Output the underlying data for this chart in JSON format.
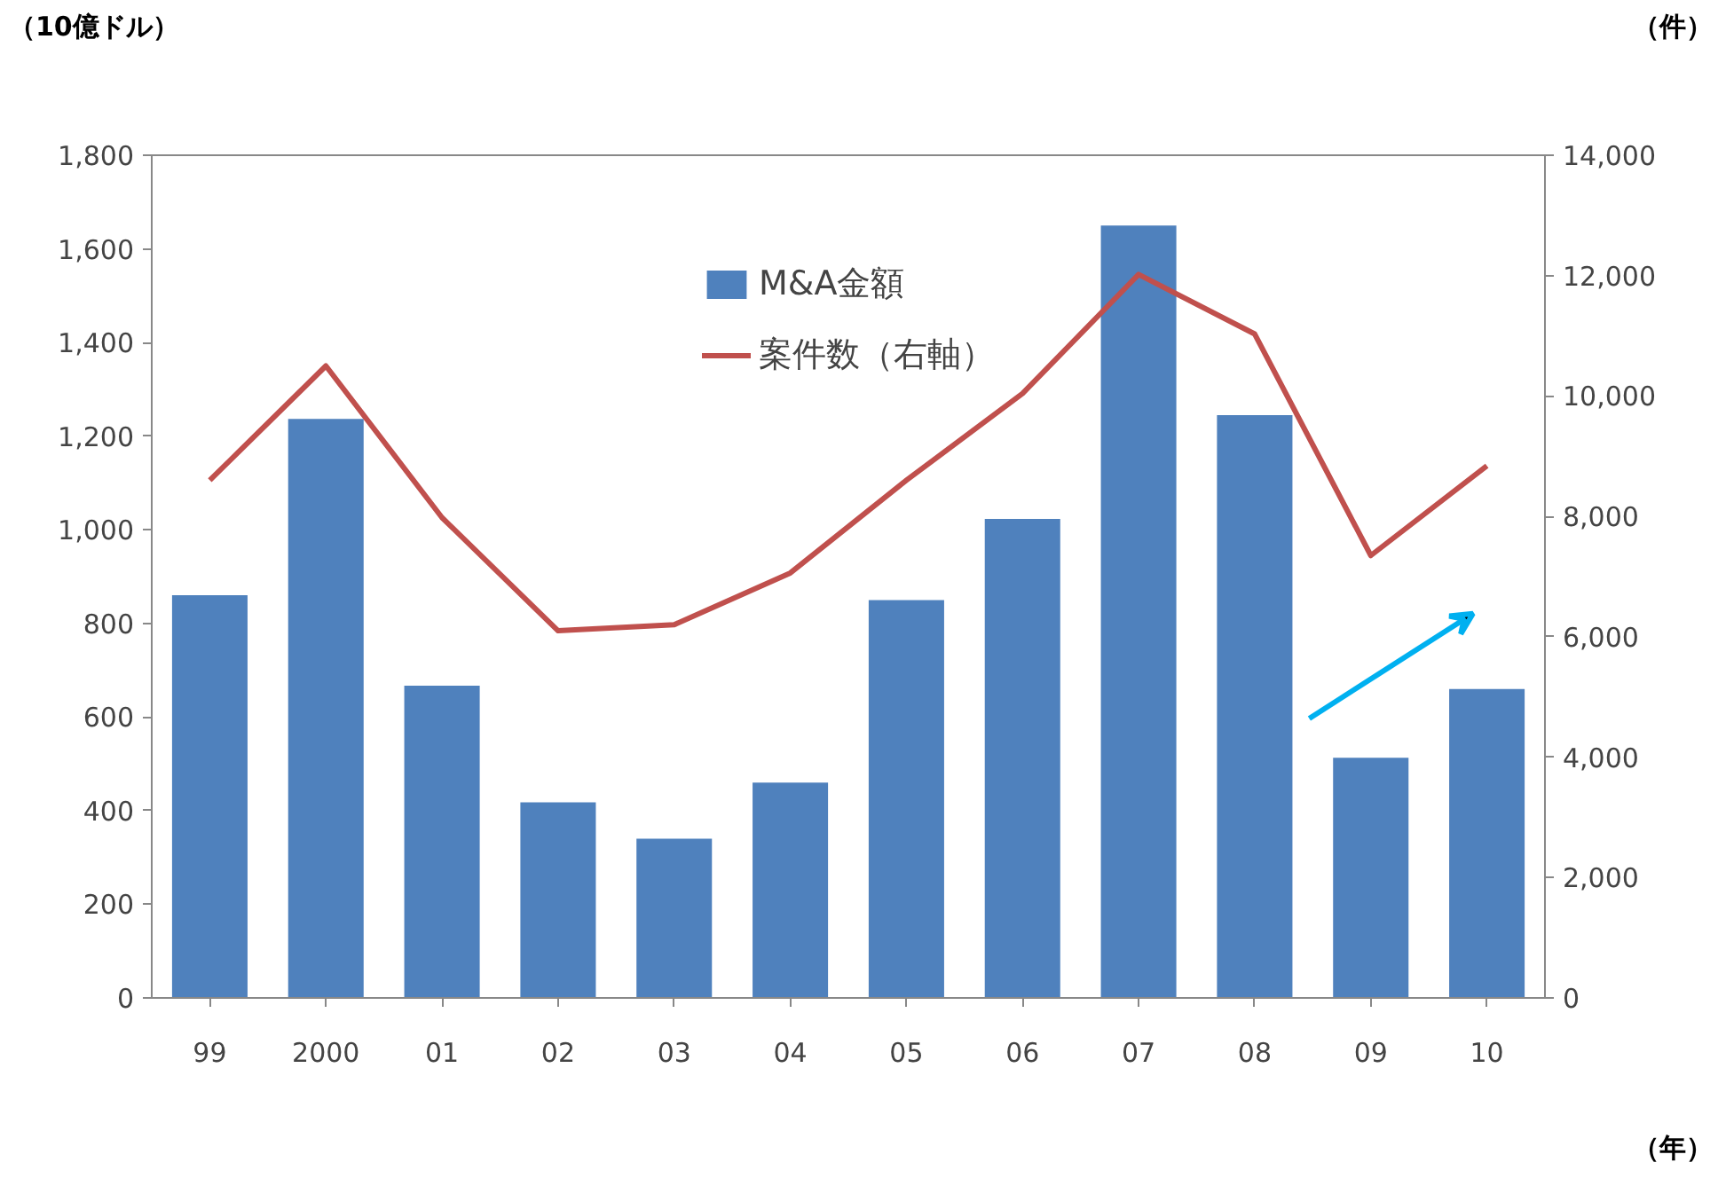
{
  "chart_data": {
    "type": "bar",
    "categories": [
      "99",
      "2000",
      "01",
      "02",
      "03",
      "04",
      "05",
      "06",
      "07",
      "08",
      "09",
      "10"
    ],
    "series": [
      {
        "name": "M&A金額",
        "color": "#4f81bd",
        "values": [
          860,
          1237,
          667,
          418,
          340,
          460,
          850,
          1023,
          1650,
          1245,
          513,
          660
        ]
      },
      {
        "name": "案件数（右軸）",
        "type": "line",
        "axis": "y2",
        "color": "#c0504d",
        "values": [
          8600,
          10500,
          7980,
          6100,
          6200,
          7060,
          8600,
          10040,
          12020,
          11030,
          7350,
          8840
        ]
      }
    ],
    "ylabel": "（10億ドル）",
    "y2label": "（件）",
    "xlabel": "（年）",
    "ylim": [
      0,
      1800
    ],
    "yticks": [
      {
        "value": 0,
        "label": "0"
      },
      {
        "value": 200,
        "label": "200"
      },
      {
        "value": 400,
        "label": "400"
      },
      {
        "value": 600,
        "label": "600"
      },
      {
        "value": 800,
        "label": "800"
      },
      {
        "value": 1000,
        "label": "1,000"
      },
      {
        "value": 1200,
        "label": "1,200"
      },
      {
        "value": 1400,
        "label": "1,400"
      },
      {
        "value": 1600,
        "label": "1,600"
      },
      {
        "value": 1800,
        "label": "1,800"
      }
    ],
    "y2lim": [
      0,
      14000
    ],
    "y2ticks": [
      {
        "value": 0,
        "label": "0"
      },
      {
        "value": 2000,
        "label": "2,000"
      },
      {
        "value": 4000,
        "label": "4,000"
      },
      {
        "value": 6000,
        "label": "6,000"
      },
      {
        "value": 8000,
        "label": "8,000"
      },
      {
        "value": 10000,
        "label": "10,000"
      },
      {
        "value": 12000,
        "label": "12,000"
      },
      {
        "value": 14000,
        "label": "14,000"
      }
    ],
    "grid": false,
    "legend": "top",
    "marker": "none",
    "line_style": "solid"
  }
}
